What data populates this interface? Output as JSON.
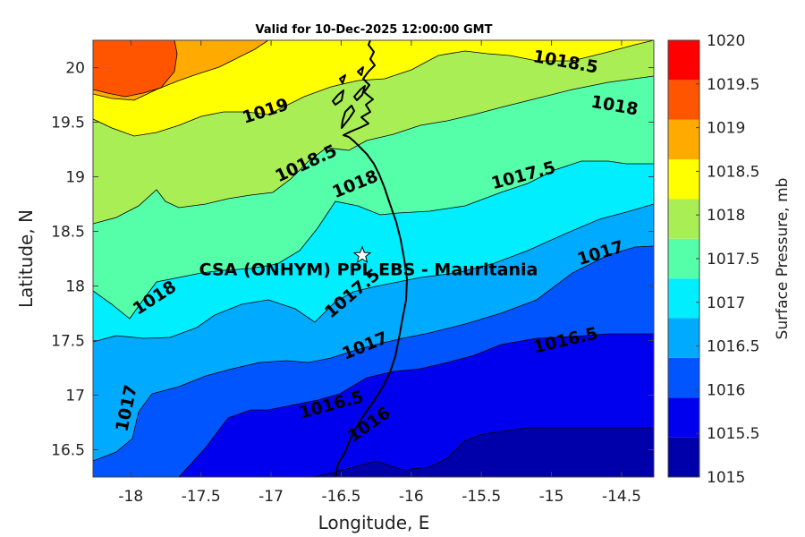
{
  "title": "Valid for 10-Dec-2025 12:00:00 GMT",
  "site": {
    "label": "CSA (ONHYM) PPL EBS  - Mauritania",
    "lon": -16.35,
    "lat": 18.28
  },
  "axes": {
    "xlabel": "Longitude, E",
    "ylabel": "Latitude, N",
    "xlim": [
      -18.27,
      -14.27
    ],
    "ylim": [
      16.25,
      20.25
    ],
    "xticks": [
      -18,
      -17.5,
      -17,
      -16.5,
      -16,
      -15.5,
      -15,
      -14.5
    ],
    "xtick_labels": [
      "-18",
      "-17.5",
      "-17",
      "-16.5",
      "-16",
      "-15.5",
      "-15",
      "-14.5"
    ],
    "yticks": [
      16.5,
      17,
      17.5,
      18,
      18.5,
      19,
      19.5,
      20
    ],
    "ytick_labels": [
      "16.5",
      "17",
      "17.5",
      "18",
      "18.5",
      "19",
      "19.5",
      "20"
    ]
  },
  "colorbar": {
    "label": "Surface Pressure, mb",
    "levels": [
      "1015",
      "1015.5",
      "1016",
      "1016.5",
      "1017",
      "1017.5",
      "1018",
      "1018.5",
      "1019",
      "1019.5",
      "1020"
    ],
    "colors": [
      "#0000aa",
      "#0000ee",
      "#0055ff",
      "#00aaff",
      "#00eeff",
      "#55ffaa",
      "#aaee55",
      "#ffff00",
      "#ffaa00",
      "#ff5500",
      "#ff0000"
    ]
  },
  "chart_data": {
    "type": "heatmap",
    "variable": "Surface Pressure, mb",
    "contour_labels": [
      {
        "text": "1018.5",
        "lon": -14.9,
        "lat": 20.05
      },
      {
        "text": "1018",
        "lon": -14.55,
        "lat": 19.65
      },
      {
        "text": "1019",
        "lon": -17.04,
        "lat": 19.6
      },
      {
        "text": "1018.5",
        "lon": -16.75,
        "lat": 19.12
      },
      {
        "text": "1018",
        "lon": -16.4,
        "lat": 18.93
      },
      {
        "text": "1017.5",
        "lon": -15.2,
        "lat": 19.01
      },
      {
        "text": "1017",
        "lon": -14.65,
        "lat": 18.3
      },
      {
        "text": "1018",
        "lon": -17.83,
        "lat": 17.89
      },
      {
        "text": "1017.5",
        "lon": -16.42,
        "lat": 17.93
      },
      {
        "text": "1017",
        "lon": -16.33,
        "lat": 17.45
      },
      {
        "text": "1016.5",
        "lon": -14.9,
        "lat": 17.5
      },
      {
        "text": "1017",
        "lon": -18.03,
        "lat": 16.88
      },
      {
        "text": "1016.5",
        "lon": -16.57,
        "lat": 16.91
      },
      {
        "text": "1016",
        "lon": -16.3,
        "lat": 16.73
      }
    ]
  }
}
